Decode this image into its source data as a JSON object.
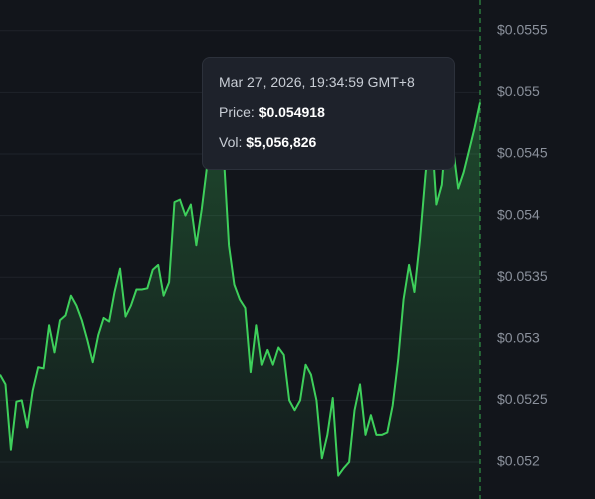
{
  "chart_data": {
    "type": "area-line",
    "values": [
      0.05271,
      0.05263,
      0.0521,
      0.05249,
      0.0525,
      0.05228,
      0.05258,
      0.05277,
      0.05276,
      0.05311,
      0.05289,
      0.05315,
      0.05319,
      0.05335,
      0.05327,
      0.05315,
      0.05299,
      0.05281,
      0.05303,
      0.05317,
      0.05314,
      0.05338,
      0.05357,
      0.05318,
      0.05327,
      0.0534,
      0.0534,
      0.05341,
      0.05356,
      0.0536,
      0.05335,
      0.05346,
      0.05411,
      0.05413,
      0.054,
      0.05409,
      0.05376,
      0.05405,
      0.05441,
      0.05478,
      0.05486,
      0.05453,
      0.05376,
      0.05344,
      0.05332,
      0.05325,
      0.05273,
      0.05311,
      0.05279,
      0.05291,
      0.05279,
      0.05293,
      0.05287,
      0.0525,
      0.05242,
      0.0525,
      0.05279,
      0.05271,
      0.0525,
      0.05203,
      0.05222,
      0.05252,
      0.05189,
      0.05195,
      0.052,
      0.05242,
      0.05263,
      0.05222,
      0.05238,
      0.05222,
      0.05222,
      0.05224,
      0.05246,
      0.05283,
      0.05332,
      0.0536,
      0.05338,
      0.0538,
      0.05433,
      0.05478,
      0.05409,
      0.05425,
      0.05482,
      0.05457,
      0.05422,
      0.05435,
      0.05453,
      0.05471,
      0.054918
    ],
    "color": "#3ecf5b",
    "ylim": [
      0.0517,
      0.05575
    ],
    "yticks": [
      {
        "value": 0.052,
        "label": "$0.052"
      },
      {
        "value": 0.0525,
        "label": "$0.0525"
      },
      {
        "value": 0.053,
        "label": "$0.053"
      },
      {
        "value": 0.0535,
        "label": "$0.0535"
      },
      {
        "value": 0.054,
        "label": "$0.054"
      },
      {
        "value": 0.0545,
        "label": "$0.0545"
      },
      {
        "value": 0.055,
        "label": "$0.055"
      },
      {
        "value": 0.0555,
        "label": "$0.0555"
      }
    ],
    "grid": true,
    "tooltip": {
      "time": "Mar 27, 2026, 19:34:59 GMT+8",
      "price_label": "Price:",
      "price": "$0.054918",
      "vol_label": "Vol:",
      "volume": "$5,056,826"
    }
  }
}
